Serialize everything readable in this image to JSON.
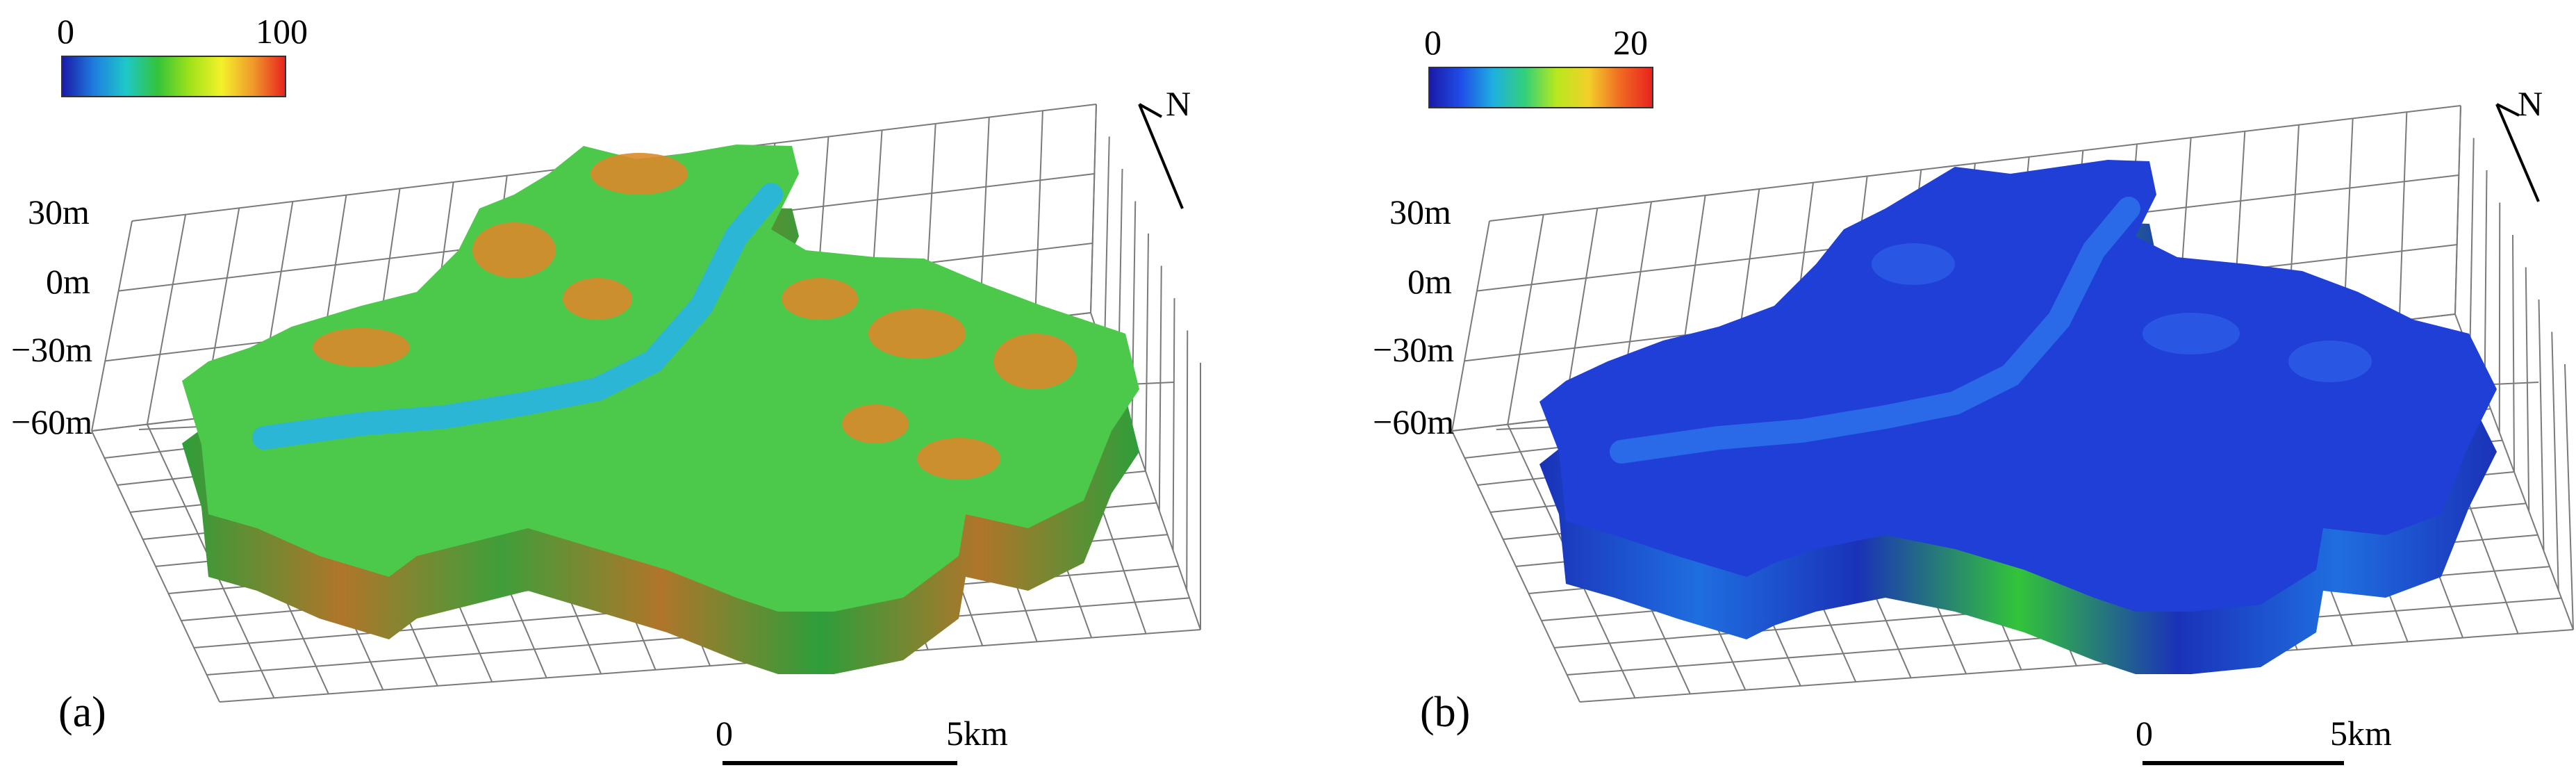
{
  "panels": [
    {
      "label": "(a)",
      "colorbar": {
        "min": "0",
        "max": "100",
        "colors": [
          "#1a1aa8",
          "#1f7ee0",
          "#1ec8c8",
          "#33c43a",
          "#9ee21a",
          "#f2f22a",
          "#f09a2a",
          "#e8231e"
        ]
      },
      "z_ticks": [
        "30m",
        "0m",
        "−30m",
        "−60m"
      ],
      "north": "N",
      "scale": {
        "start": "0",
        "end": "5km"
      }
    },
    {
      "label": "(b)",
      "colorbar": {
        "min": "0",
        "max": "20",
        "colors": [
          "#1a1aa8",
          "#1f4ee8",
          "#1eb0e0",
          "#33d07a",
          "#b8e81e",
          "#f2d02a",
          "#f06a22",
          "#e8231e"
        ]
      },
      "z_ticks": [
        "30m",
        "0m",
        "−30m",
        "−60m"
      ],
      "north": "N",
      "scale": {
        "start": "0",
        "end": "5km"
      }
    }
  ]
}
